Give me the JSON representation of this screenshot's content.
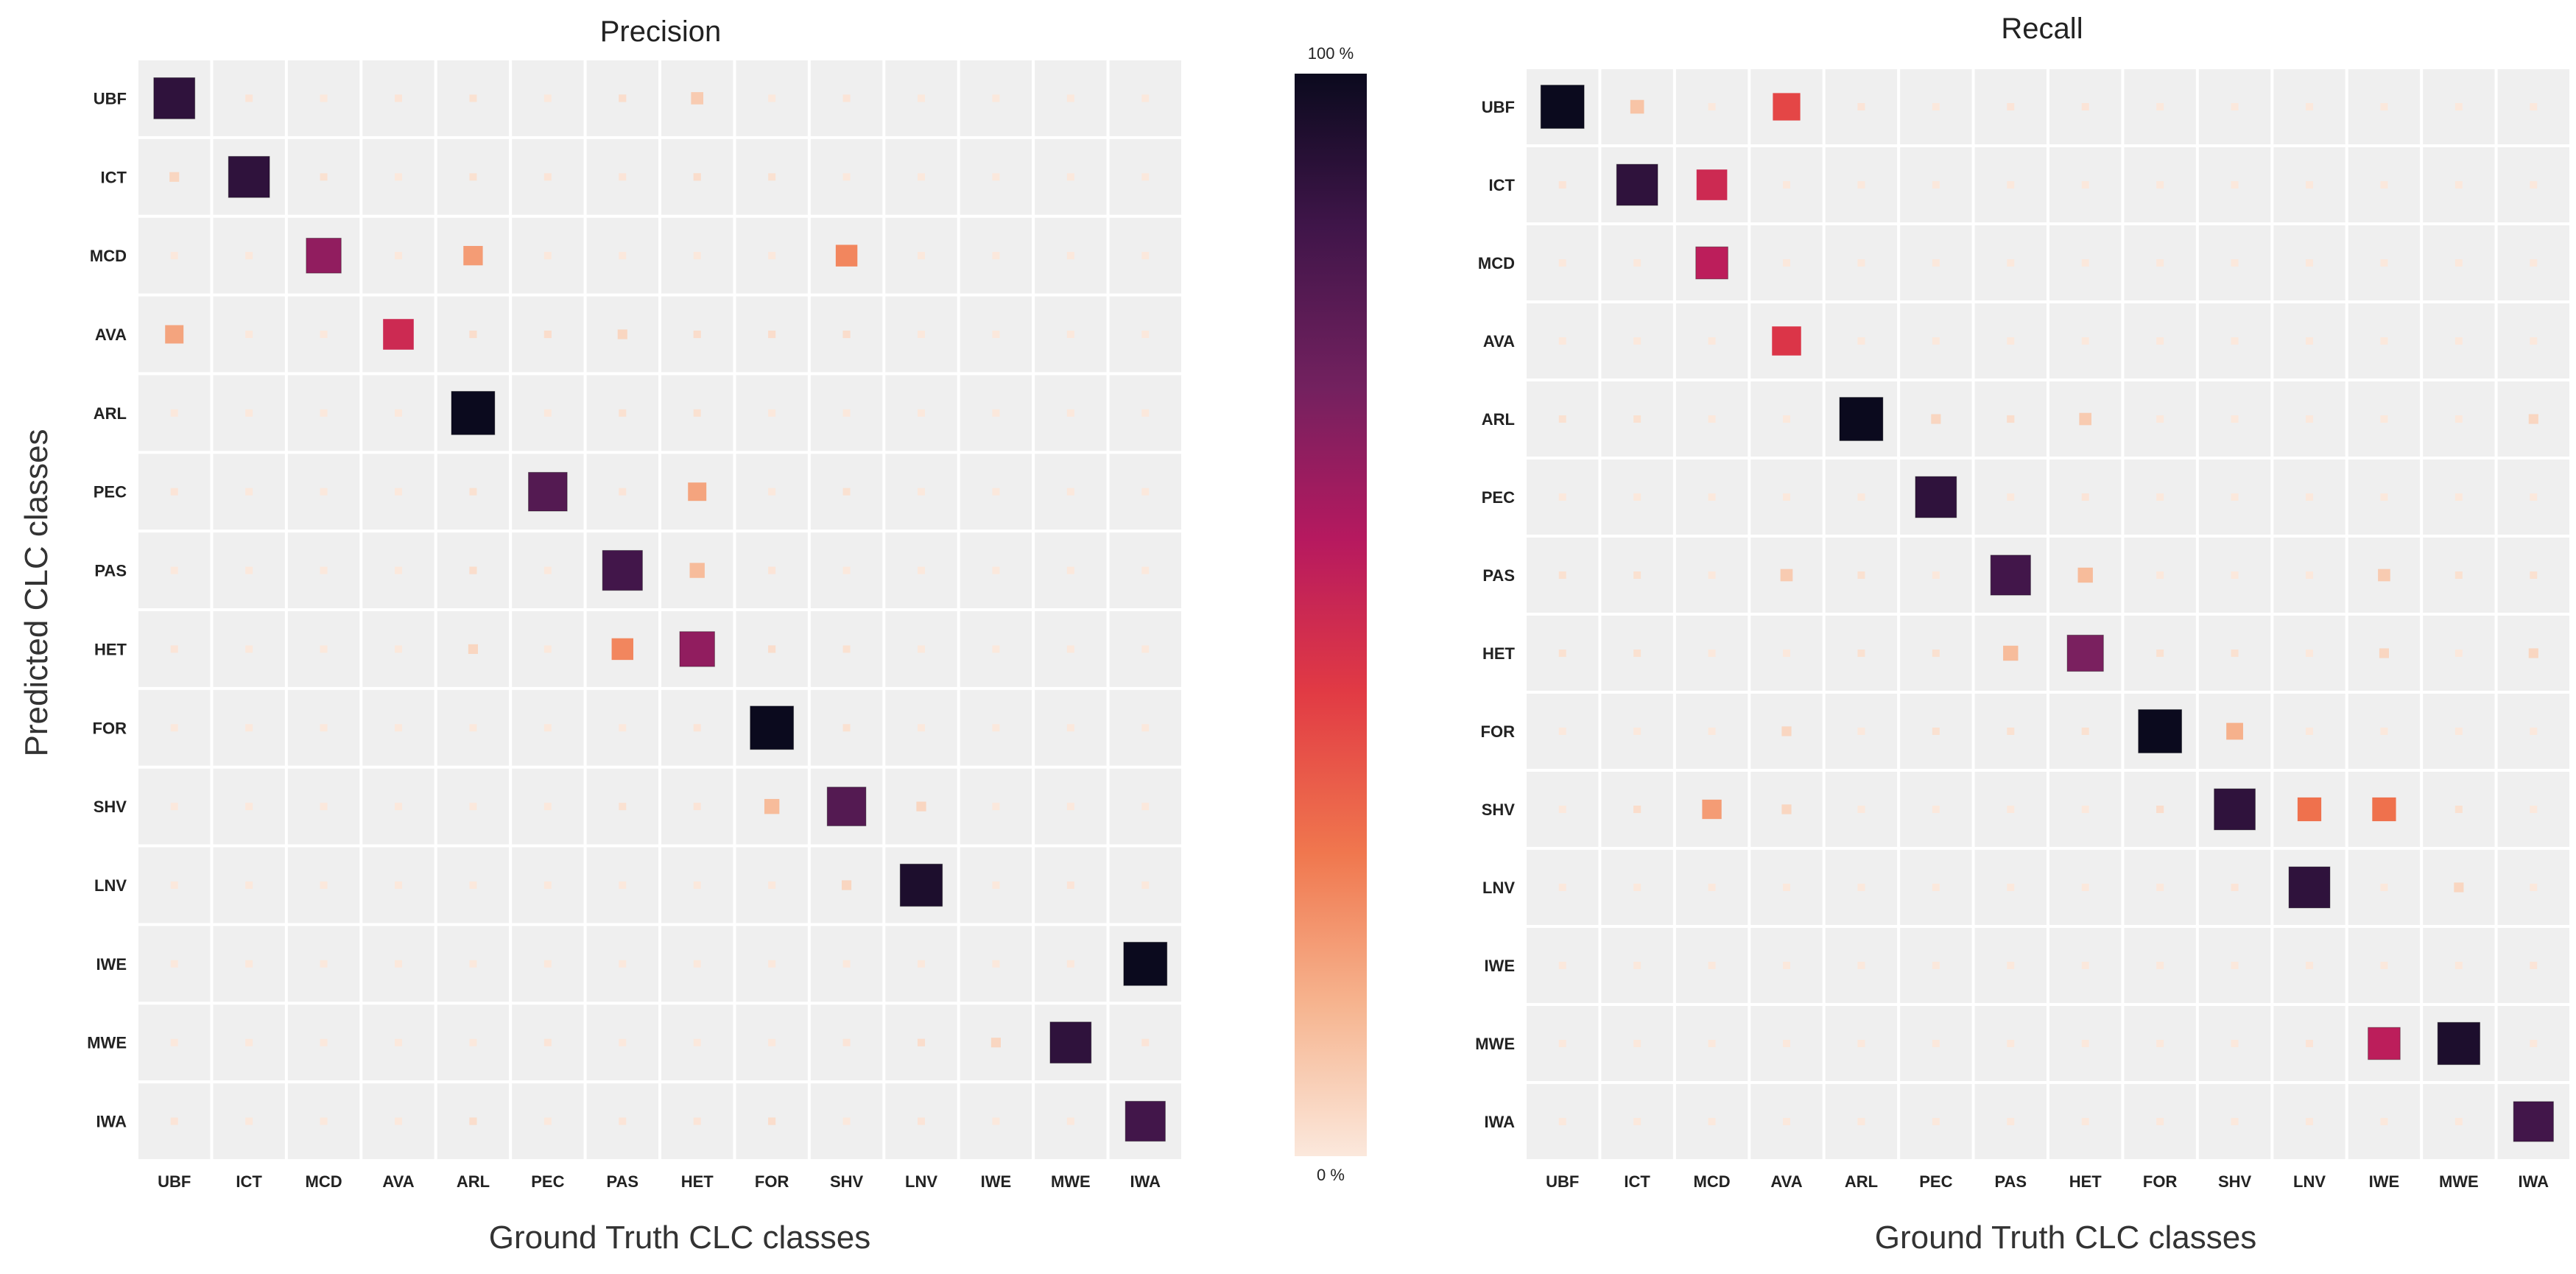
{
  "chart_data": [
    {
      "type": "heatmap",
      "title": "Precision",
      "xlabel": "Ground Truth CLC classes",
      "ylabel": "Predicted CLC classes",
      "x_categories": [
        "UBF",
        "ICT",
        "MCD",
        "AVA",
        "ARL",
        "PEC",
        "PAS",
        "HET",
        "FOR",
        "SHV",
        "LNV",
        "IWE",
        "MWE",
        "IWA"
      ],
      "y_categories": [
        "UBF",
        "ICT",
        "MCD",
        "AVA",
        "ARL",
        "PEC",
        "PAS",
        "HET",
        "FOR",
        "SHV",
        "LNV",
        "IWE",
        "MWE",
        "IWA"
      ],
      "value_range": [
        0,
        1
      ],
      "encoding": "square size and color scale with value",
      "matrix": [
        [
          0.9,
          0.01,
          0.0,
          0.01,
          0.02,
          0.0,
          0.03,
          0.08,
          0.0,
          0.01,
          0.0,
          0.0,
          0.0,
          0.0
        ],
        [
          0.05,
          0.9,
          0.02,
          0.0,
          0.02,
          0.01,
          0.01,
          0.03,
          0.02,
          0.0,
          0.0,
          0.0,
          0.0,
          0.0
        ],
        [
          0.0,
          0.0,
          0.65,
          0.0,
          0.2,
          0.0,
          0.0,
          0.0,
          0.0,
          0.25,
          0.0,
          0.0,
          0.0,
          0.0
        ],
        [
          0.18,
          0.0,
          0.0,
          0.5,
          0.03,
          0.03,
          0.05,
          0.03,
          0.03,
          0.03,
          0.0,
          0.0,
          0.0,
          0.0
        ],
        [
          0.0,
          0.0,
          0.0,
          0.0,
          1.0,
          0.0,
          0.02,
          0.02,
          0.0,
          0.0,
          0.0,
          0.0,
          0.0,
          0.0
        ],
        [
          0.01,
          0.0,
          0.0,
          0.0,
          0.02,
          0.8,
          0.01,
          0.18,
          0.0,
          0.02,
          0.0,
          0.0,
          0.0,
          0.0
        ],
        [
          0.0,
          0.0,
          0.0,
          0.0,
          0.03,
          0.0,
          0.85,
          0.12,
          0.01,
          0.0,
          0.0,
          0.0,
          0.0,
          0.0
        ],
        [
          0.01,
          0.0,
          0.0,
          0.0,
          0.05,
          0.0,
          0.25,
          0.65,
          0.03,
          0.02,
          0.0,
          0.0,
          0.0,
          0.0
        ],
        [
          0.0,
          0.0,
          0.0,
          0.0,
          0.0,
          0.0,
          0.0,
          0.01,
          1.0,
          0.02,
          0.0,
          0.0,
          0.0,
          0.0
        ],
        [
          0.0,
          0.0,
          0.0,
          0.0,
          0.0,
          0.0,
          0.02,
          0.01,
          0.12,
          0.8,
          0.05,
          0.0,
          0.0,
          0.0
        ],
        [
          0.0,
          0.0,
          0.0,
          0.0,
          0.0,
          0.0,
          0.0,
          0.0,
          0.0,
          0.05,
          0.95,
          0.0,
          0.01,
          0.0
        ],
        [
          0.0,
          0.0,
          0.0,
          0.0,
          0.0,
          0.0,
          0.0,
          0.0,
          0.0,
          0.0,
          0.0,
          0.0,
          0.0,
          1.0
        ],
        [
          0.0,
          0.0,
          0.0,
          0.0,
          0.0,
          0.01,
          0.0,
          0.0,
          0.0,
          0.01,
          0.03,
          0.05,
          0.9,
          0.01
        ],
        [
          0.01,
          0.0,
          0.0,
          0.0,
          0.03,
          0.0,
          0.01,
          0.01,
          0.03,
          0.0,
          0.01,
          0.0,
          0.0,
          0.85
        ]
      ]
    },
    {
      "type": "heatmap",
      "title": "Recall",
      "xlabel": "Ground Truth CLC classes",
      "ylabel": "",
      "x_categories": [
        "UBF",
        "ICT",
        "MCD",
        "AVA",
        "ARL",
        "PEC",
        "PAS",
        "HET",
        "FOR",
        "SHV",
        "LNV",
        "IWE",
        "MWE",
        "IWA"
      ],
      "y_categories": [
        "UBF",
        "ICT",
        "MCD",
        "AVA",
        "ARL",
        "PEC",
        "PAS",
        "HET",
        "FOR",
        "SHV",
        "LNV",
        "IWE",
        "MWE",
        "IWA"
      ],
      "value_range": [
        0,
        1
      ],
      "encoding": "square size and color scale with value",
      "matrix": [
        [
          1.0,
          0.1,
          0.0,
          0.4,
          0.01,
          0.0,
          0.01,
          0.01,
          0.0,
          0.0,
          0.0,
          0.0,
          0.0,
          0.0
        ],
        [
          0.01,
          0.9,
          0.5,
          0.0,
          0.0,
          0.0,
          0.0,
          0.0,
          0.0,
          0.0,
          0.0,
          0.0,
          0.0,
          0.0
        ],
        [
          0.0,
          0.0,
          0.55,
          0.0,
          0.0,
          0.0,
          0.0,
          0.0,
          0.0,
          0.0,
          0.0,
          0.0,
          0.0,
          0.0
        ],
        [
          0.0,
          0.0,
          0.0,
          0.45,
          0.0,
          0.0,
          0.0,
          0.0,
          0.0,
          0.0,
          0.0,
          0.0,
          0.0,
          0.0
        ],
        [
          0.02,
          0.02,
          0.0,
          0.0,
          1.0,
          0.05,
          0.03,
          0.08,
          0.0,
          0.0,
          0.0,
          0.0,
          0.0,
          0.05
        ],
        [
          0.0,
          0.0,
          0.0,
          0.0,
          0.0,
          0.9,
          0.0,
          0.01,
          0.0,
          0.0,
          0.0,
          0.0,
          0.0,
          0.0
        ],
        [
          0.02,
          0.02,
          0.0,
          0.08,
          0.02,
          0.0,
          0.85,
          0.12,
          0.0,
          0.0,
          0.0,
          0.08,
          0.02,
          0.02
        ],
        [
          0.02,
          0.02,
          0.0,
          0.0,
          0.02,
          0.02,
          0.12,
          0.7,
          0.02,
          0.02,
          0.0,
          0.05,
          0.0,
          0.05
        ],
        [
          0.0,
          0.0,
          0.0,
          0.05,
          0.0,
          0.02,
          0.02,
          0.02,
          1.0,
          0.15,
          0.0,
          0.0,
          0.0,
          0.0
        ],
        [
          0.0,
          0.03,
          0.2,
          0.05,
          0.0,
          0.0,
          0.0,
          0.0,
          0.03,
          0.9,
          0.3,
          0.3,
          0.02,
          0.0
        ],
        [
          0.0,
          0.0,
          0.0,
          0.0,
          0.0,
          0.0,
          0.0,
          0.0,
          0.0,
          0.01,
          0.9,
          0.0,
          0.05,
          0.0
        ],
        [
          0.0,
          0.0,
          0.0,
          0.0,
          0.0,
          0.0,
          0.0,
          0.0,
          0.0,
          0.0,
          0.0,
          0.0,
          0.0,
          0.01
        ],
        [
          0.0,
          0.0,
          0.0,
          0.0,
          0.0,
          0.0,
          0.0,
          0.0,
          0.0,
          0.0,
          0.01,
          0.55,
          0.95,
          0.0
        ],
        [
          0.0,
          0.0,
          0.0,
          0.0,
          0.0,
          0.0,
          0.0,
          0.0,
          0.0,
          0.0,
          0.0,
          0.0,
          0.0,
          0.85
        ]
      ]
    }
  ],
  "colorbar": {
    "max_label": "100 %",
    "min_label": "0 %",
    "colors": [
      "#fbe8dc",
      "#f6b48f",
      "#f0774e",
      "#e13a44",
      "#b6195f",
      "#73215f",
      "#3f1549",
      "#0b0a1e"
    ]
  },
  "cell_background": "#efefef"
}
